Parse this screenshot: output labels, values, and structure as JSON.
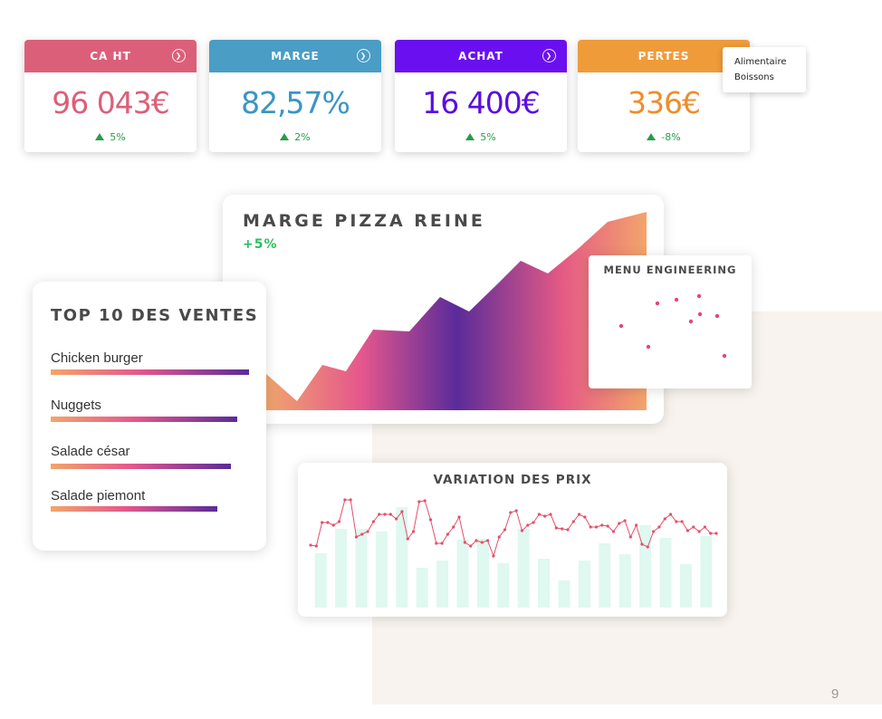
{
  "kpis": [
    {
      "label": "CA HT",
      "value": "96 043€",
      "change": "5%",
      "color": "#dc5f79",
      "valueColor": "#dc5f79"
    },
    {
      "label": "MARGE",
      "value": "82,57%",
      "change": "2%",
      "color": "#4a9dc4",
      "valueColor": "#3a95c4"
    },
    {
      "label": "ACHAT",
      "value": "16 400€",
      "change": "5%",
      "color": "#6a10f0",
      "valueColor": "#5a0ee0"
    },
    {
      "label": "PERTES",
      "value": "336€",
      "change": "-8%",
      "color": "#f09b3a",
      "valueColor": "#ef8d2c"
    }
  ],
  "tooltip": {
    "line1": "Alimentaire",
    "line2": "Boissons"
  },
  "marge_chart": {
    "title": "MARGE PIZZA REINE",
    "change": "+5%",
    "gradient": [
      "#f0a56e",
      "#e5578c",
      "#5a2b9a",
      "#e55a85",
      "#f3a56b"
    ]
  },
  "menu_engineering": {
    "title": "MENU ENGINEERING",
    "dot_color": "#e5457a"
  },
  "top_ventes": {
    "title": "TOP 10 DES VENTES",
    "items": [
      {
        "label": "Chicken burger",
        "value": 1.0
      },
      {
        "label": "Nuggets",
        "value": 0.94
      },
      {
        "label": "Salade césar",
        "value": 0.91
      },
      {
        "label": "Salade piemont",
        "value": 0.84
      }
    ]
  },
  "chart_data": {
    "type": "bar",
    "title": "VARIATION DES PRIX",
    "values": [
      60,
      87,
      87,
      84,
      111,
      44,
      52,
      75,
      76,
      49,
      87,
      54,
      30,
      52,
      71,
      59,
      91,
      77,
      48,
      79
    ],
    "line": [
      69,
      68,
      94,
      94,
      91,
      95,
      119,
      119,
      78,
      81,
      84,
      95,
      103,
      103,
      103,
      98,
      106,
      76,
      84,
      117,
      118,
      97,
      71,
      71,
      81,
      89,
      100,
      72,
      68,
      74,
      72,
      74,
      57,
      78,
      86,
      105,
      107,
      85,
      91,
      94,
      103,
      101,
      103,
      88,
      87,
      86,
      95,
      103,
      100,
      89,
      89,
      91,
      90,
      84,
      93,
      96,
      78,
      91,
      70,
      67,
      84,
      89,
      98,
      103,
      95,
      95,
      85,
      89,
      84,
      89,
      82,
      82
    ],
    "bar_color": "#dff8f0",
    "line_color": "#e5506a",
    "ylim": [
      0,
      130
    ]
  },
  "page_number": "9"
}
